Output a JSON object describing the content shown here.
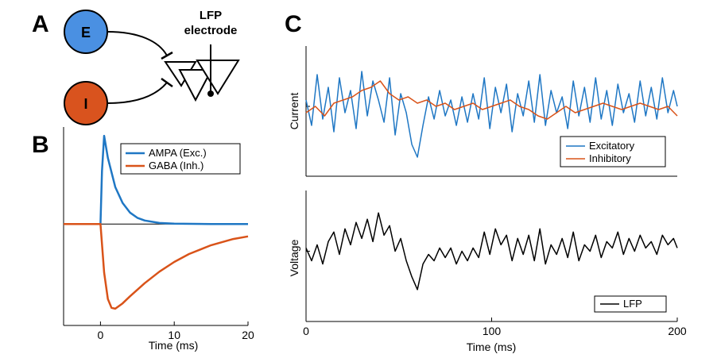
{
  "panel_a": {
    "letter": "A",
    "node_e": "E",
    "node_i": "I",
    "electrode_line1": "LFP",
    "electrode_line2": "electrode",
    "colors": {
      "excitatory": "#4a90e2",
      "inhibitory": "#d9531e"
    }
  },
  "panel_b": {
    "letter": "B",
    "xlabel": "Time (ms)",
    "legend": [
      "AMPA (Exc.)",
      "GABA (Inh.)"
    ]
  },
  "panel_c": {
    "letter": "C",
    "top_ylabel": "Current",
    "bottom_ylabel": "Voltage",
    "xlabel": "Time (ms)",
    "top_legend": [
      "Excitatory",
      "Inhibitory"
    ],
    "bottom_legend": [
      "LFP"
    ]
  },
  "chart_data": [
    {
      "type": "line",
      "panel": "B",
      "xlabel": "Time (ms)",
      "ylabel": "",
      "xlim": [
        -5,
        20
      ],
      "xticks": [
        "0",
        "10",
        "20"
      ],
      "series": [
        {
          "name": "AMPA (Exc.)",
          "color": "#1f77c4",
          "x": [
            -5,
            0,
            0.2,
            0.5,
            1,
            2,
            3,
            4,
            5,
            6,
            8,
            10,
            15,
            20
          ],
          "y": [
            0,
            0,
            0.6,
            1.0,
            0.75,
            0.42,
            0.24,
            0.13,
            0.07,
            0.04,
            0.012,
            0.004,
            0,
            0
          ]
        },
        {
          "name": "GABA (Inh.)",
          "color": "#d95319",
          "x": [
            -5,
            0,
            0.5,
            1,
            1.5,
            2,
            3,
            4,
            6,
            8,
            10,
            12,
            15,
            18,
            20
          ],
          "y": [
            0,
            0,
            -0.55,
            -0.85,
            -0.95,
            -0.96,
            -0.9,
            -0.82,
            -0.67,
            -0.54,
            -0.43,
            -0.34,
            -0.24,
            -0.17,
            -0.14
          ]
        }
      ]
    },
    {
      "type": "line",
      "panel": "C-top",
      "ylabel": "Current",
      "xlim": [
        0,
        200
      ],
      "series": [
        {
          "name": "Excitatory",
          "color": "#1f77c4",
          "x": [
            0,
            3,
            6,
            9,
            12,
            15,
            18,
            21,
            24,
            27,
            30,
            33,
            36,
            39,
            42,
            45,
            48,
            51,
            54,
            57,
            60,
            63,
            66,
            69,
            72,
            75,
            78,
            81,
            84,
            87,
            90,
            93,
            96,
            99,
            102,
            105,
            108,
            111,
            114,
            117,
            120,
            123,
            126,
            129,
            132,
            135,
            138,
            141,
            144,
            147,
            150,
            153,
            156,
            159,
            162,
            165,
            168,
            171,
            174,
            177,
            180,
            183,
            186,
            189,
            192,
            195,
            198,
            200
          ],
          "y": [
            0.2,
            -0.6,
            1.0,
            -0.4,
            0.6,
            -0.8,
            0.9,
            -0.2,
            0.5,
            -0.7,
            1.1,
            -0.3,
            0.8,
            0.2,
            -0.5,
            0.9,
            -0.9,
            0.4,
            -0.2,
            -1.2,
            -1.6,
            -0.6,
            0.3,
            -0.4,
            0.5,
            -0.3,
            0.2,
            -0.6,
            0.3,
            -0.5,
            0.4,
            -0.4,
            0.9,
            -0.7,
            0.6,
            -0.2,
            0.7,
            -0.8,
            0.4,
            -0.3,
            0.8,
            -0.5,
            1.0,
            -0.6,
            0.5,
            -0.2,
            0.3,
            -0.7,
            0.8,
            -0.3,
            0.6,
            -0.5,
            0.9,
            -0.4,
            0.5,
            -0.6,
            0.7,
            -0.2,
            0.4,
            -0.5,
            0.8,
            -0.3,
            0.6,
            -0.4,
            0.9,
            -0.2,
            0.5,
            0.0
          ]
        },
        {
          "name": "Inhibitory",
          "color": "#d95319",
          "x": [
            0,
            5,
            10,
            15,
            20,
            25,
            30,
            35,
            40,
            45,
            50,
            55,
            60,
            65,
            70,
            75,
            80,
            85,
            90,
            95,
            100,
            105,
            110,
            115,
            120,
            125,
            130,
            135,
            140,
            145,
            150,
            155,
            160,
            165,
            170,
            175,
            180,
            185,
            190,
            195,
            200
          ],
          "y": [
            -0.2,
            0.0,
            -0.3,
            0.1,
            0.2,
            0.3,
            0.5,
            0.6,
            0.8,
            0.4,
            0.2,
            0.3,
            0.1,
            0.2,
            0.0,
            0.1,
            -0.1,
            0.0,
            0.1,
            -0.1,
            0.0,
            0.1,
            0.2,
            0.0,
            -0.1,
            -0.3,
            -0.4,
            -0.2,
            0.0,
            -0.2,
            -0.1,
            0.0,
            0.1,
            0.0,
            -0.1,
            0.0,
            0.1,
            0.0,
            -0.1,
            0.0,
            -0.3
          ]
        }
      ]
    },
    {
      "type": "line",
      "panel": "C-bottom",
      "xlabel": "Time (ms)",
      "ylabel": "Voltage",
      "xlim": [
        0,
        200
      ],
      "xticks": [
        "0",
        "100",
        "200"
      ],
      "series": [
        {
          "name": "LFP",
          "color": "#000000",
          "x": [
            0,
            3,
            6,
            9,
            12,
            15,
            18,
            21,
            24,
            27,
            30,
            33,
            36,
            39,
            42,
            45,
            48,
            51,
            54,
            57,
            60,
            63,
            66,
            69,
            72,
            75,
            78,
            81,
            84,
            87,
            90,
            93,
            96,
            99,
            102,
            105,
            108,
            111,
            114,
            117,
            120,
            123,
            126,
            129,
            132,
            135,
            138,
            141,
            144,
            147,
            150,
            153,
            156,
            159,
            162,
            165,
            168,
            171,
            174,
            177,
            180,
            183,
            186,
            189,
            192,
            195,
            198,
            200
          ],
          "y": [
            0.1,
            -0.3,
            0.2,
            -0.4,
            0.3,
            0.6,
            -0.1,
            0.7,
            0.2,
            0.9,
            0.4,
            1.0,
            0.3,
            1.2,
            0.5,
            0.8,
            0.0,
            0.4,
            -0.3,
            -0.8,
            -1.2,
            -0.4,
            -0.1,
            -0.3,
            0.1,
            -0.2,
            0.1,
            -0.4,
            0.0,
            -0.3,
            0.1,
            -0.2,
            0.6,
            -0.1,
            0.7,
            0.2,
            0.5,
            -0.3,
            0.4,
            -0.1,
            0.5,
            -0.3,
            0.7,
            -0.4,
            0.2,
            -0.1,
            0.4,
            -0.2,
            0.6,
            -0.3,
            0.2,
            0.0,
            0.5,
            -0.2,
            0.3,
            0.1,
            0.6,
            -0.1,
            0.4,
            0.0,
            0.5,
            0.1,
            0.3,
            -0.1,
            0.5,
            0.2,
            0.4,
            0.1
          ]
        }
      ]
    }
  ]
}
